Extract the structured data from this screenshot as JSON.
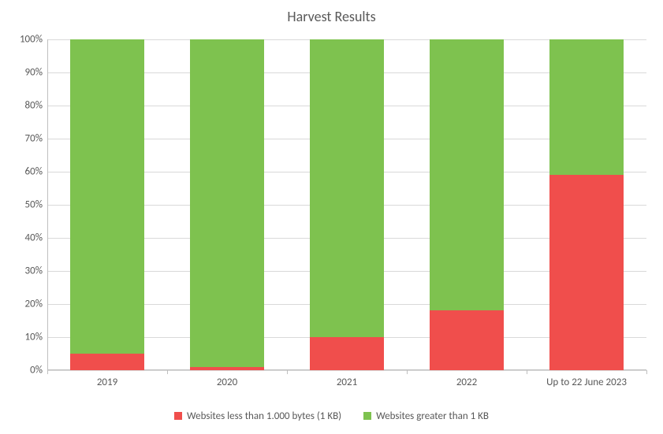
{
  "chart": {
    "type": "stacked-bar-100",
    "title": "Harvest Results",
    "title_fontsize": 18,
    "title_color": "#595959",
    "background_color": "#ffffff",
    "grid_color": "#d9d9d9",
    "axis_line_color": "#bfbfbf",
    "tick_label_color": "#595959",
    "tick_label_fontsize": 13,
    "ylim": [
      0,
      100
    ],
    "ytick_step": 10,
    "ytick_suffix": "%",
    "categories": [
      "2019",
      "2020",
      "2021",
      "2022",
      "Up to 22 June 2023"
    ],
    "series": [
      {
        "name": "Websites less than 1.000 bytes (1 KB)",
        "color": "#f04e4c",
        "values": [
          5,
          1,
          10,
          18,
          59
        ]
      },
      {
        "name": "Websites greater than 1 KB",
        "color": "#7ec24f",
        "values": [
          95,
          99,
          90,
          82,
          41
        ]
      }
    ],
    "bar_width_ratio": 0.62,
    "legend_fontsize": 13
  }
}
